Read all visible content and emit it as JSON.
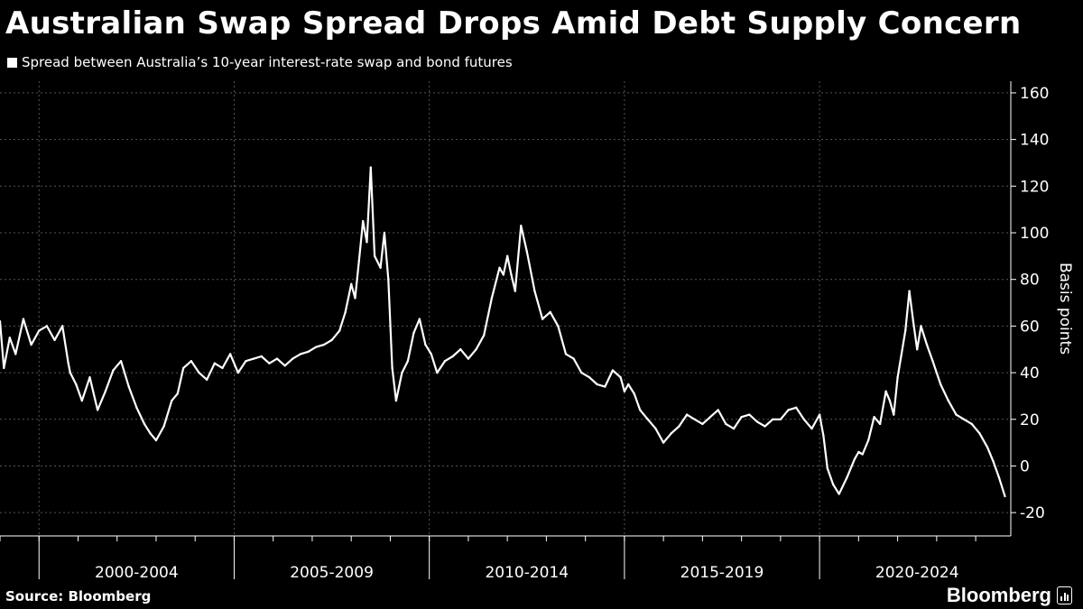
{
  "title": "Australian Swap Spread Drops Amid Debt Supply Concern",
  "source": "Source: Bloomberg",
  "brand": "Bloomberg",
  "colors": {
    "background": "#000000",
    "series": "#ffffff",
    "grid": "#555555"
  },
  "chart_data": {
    "type": "line",
    "legend": [
      "Spread between Australia’s 10-year interest-rate swap and bond futures"
    ],
    "ylabel": "Basis points",
    "ylim": [
      -30,
      165
    ],
    "yticks": [
      -20,
      0,
      20,
      40,
      60,
      80,
      100,
      120,
      140,
      160
    ],
    "ytick_labels": [
      "-20",
      "0",
      "20",
      "40",
      "60",
      "80",
      "100",
      "120",
      "140",
      "160"
    ],
    "xlim": [
      1999.0,
      2024.9
    ],
    "xtick_groups": [
      {
        "label": "2000-2004",
        "start": 2000,
        "end": 2005
      },
      {
        "label": "2005-2009",
        "start": 2005,
        "end": 2010
      },
      {
        "label": "2010-2014",
        "start": 2010,
        "end": 2015
      },
      {
        "label": "2015-2019",
        "start": 2015,
        "end": 2020
      },
      {
        "label": "2020-2024",
        "start": 2020,
        "end": 2025
      }
    ],
    "grid": true,
    "y_axis_position": "right",
    "series": [
      {
        "name": "Spread between Australia’s 10-year interest-rate swap and bond futures",
        "x": [
          1999.0,
          1999.1,
          1999.25,
          1999.4,
          1999.6,
          1999.8,
          2000.0,
          2000.2,
          2000.4,
          2000.6,
          2000.75,
          2000.8,
          2000.95,
          2001.1,
          2001.3,
          2001.5,
          2001.7,
          2001.9,
          2002.1,
          2002.3,
          2002.5,
          2002.7,
          2002.85,
          2003.0,
          2003.2,
          2003.4,
          2003.55,
          2003.7,
          2003.9,
          2004.1,
          2004.3,
          2004.5,
          2004.7,
          2004.9,
          2005.1,
          2005.3,
          2005.5,
          2005.7,
          2005.9,
          2006.1,
          2006.3,
          2006.5,
          2006.7,
          2006.9,
          2007.1,
          2007.3,
          2007.5,
          2007.7,
          2007.85,
          2008.0,
          2008.1,
          2008.2,
          2008.3,
          2008.4,
          2008.5,
          2008.6,
          2008.75,
          2008.85,
          2008.95,
          2009.05,
          2009.15,
          2009.3,
          2009.45,
          2009.6,
          2009.75,
          2009.9,
          2010.05,
          2010.2,
          2010.4,
          2010.6,
          2010.8,
          2011.0,
          2011.2,
          2011.4,
          2011.6,
          2011.8,
          2011.9,
          2012.0,
          2012.1,
          2012.2,
          2012.35,
          2012.5,
          2012.7,
          2012.9,
          2013.1,
          2013.3,
          2013.5,
          2013.7,
          2013.9,
          2014.1,
          2014.3,
          2014.5,
          2014.7,
          2014.9,
          2015.0,
          2015.1,
          2015.25,
          2015.4,
          2015.6,
          2015.8,
          2016.0,
          2016.2,
          2016.4,
          2016.6,
          2016.8,
          2017.0,
          2017.2,
          2017.4,
          2017.6,
          2017.8,
          2018.0,
          2018.2,
          2018.4,
          2018.6,
          2018.8,
          2019.0,
          2019.2,
          2019.4,
          2019.6,
          2019.8,
          2020.0,
          2020.1,
          2020.2,
          2020.35,
          2020.5,
          2020.7,
          2020.9,
          2021.0,
          2021.1,
          2021.25,
          2021.4,
          2021.55,
          2021.7,
          2021.8,
          2021.9,
          2022.0,
          2022.1,
          2022.2,
          2022.3,
          2022.4,
          2022.5,
          2022.6,
          2022.75,
          2022.9,
          2023.1,
          2023.3,
          2023.5,
          2023.7,
          2023.9,
          2024.1,
          2024.3,
          2024.45,
          2024.6,
          2024.75
        ],
        "y": [
          62,
          42,
          55,
          48,
          63,
          52,
          58,
          60,
          54,
          60,
          44,
          40,
          35,
          28,
          38,
          24,
          32,
          41,
          45,
          34,
          25,
          18,
          14,
          11,
          17,
          28,
          31,
          42,
          45,
          40,
          37,
          44,
          42,
          48,
          40,
          45,
          46,
          47,
          44,
          46,
          43,
          46,
          48,
          49,
          51,
          52,
          54,
          58,
          66,
          78,
          72,
          88,
          105,
          96,
          128,
          90,
          85,
          100,
          80,
          42,
          28,
          40,
          45,
          57,
          63,
          52,
          48,
          40,
          45,
          47,
          50,
          46,
          50,
          56,
          72,
          85,
          82,
          90,
          82,
          75,
          103,
          92,
          75,
          63,
          66,
          60,
          48,
          46,
          40,
          38,
          35,
          34,
          41,
          38,
          32,
          35,
          31,
          24,
          20,
          16,
          10,
          14,
          17,
          22,
          20,
          18,
          21,
          24,
          18,
          16,
          21,
          22,
          19,
          17,
          20,
          20,
          24,
          25,
          20,
          16,
          22,
          13,
          -1,
          -8,
          -12,
          -5,
          3,
          6,
          5,
          11,
          21,
          18,
          32,
          28,
          22,
          38,
          48,
          58,
          75,
          62,
          50,
          60,
          52,
          45,
          35,
          28,
          22,
          20,
          18,
          14,
          8,
          2,
          -5,
          -13
        ]
      }
    ]
  }
}
